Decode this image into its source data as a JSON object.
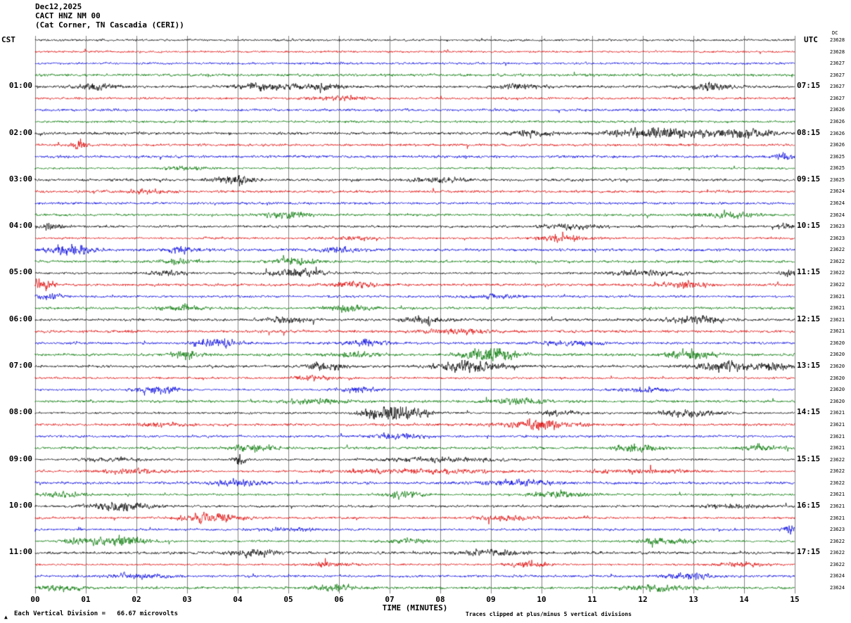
{
  "header": {
    "date": "Dec12,2025",
    "station": "CACT HNZ NM 00",
    "location": "(Cat Corner, TN Cascadia (CERI))"
  },
  "axes": {
    "left_header": "CST",
    "right_header": "UTC",
    "dc_header": "DC",
    "x_axis_title": "TIME (MINUTES)",
    "x_ticks": [
      "00",
      "01",
      "02",
      "03",
      "04",
      "05",
      "06",
      "07",
      "08",
      "09",
      "10",
      "11",
      "12",
      "13",
      "14",
      "15"
    ],
    "left_labels": [
      {
        "row": 4,
        "text": "01:00"
      },
      {
        "row": 8,
        "text": "02:00"
      },
      {
        "row": 12,
        "text": "03:00"
      },
      {
        "row": 16,
        "text": "04:00"
      },
      {
        "row": 20,
        "text": "05:00"
      },
      {
        "row": 24,
        "text": "06:00"
      },
      {
        "row": 28,
        "text": "07:00"
      },
      {
        "row": 32,
        "text": "08:00"
      },
      {
        "row": 36,
        "text": "09:00"
      },
      {
        "row": 40,
        "text": "10:00"
      },
      {
        "row": 44,
        "text": "11:00"
      }
    ],
    "right_labels": [
      {
        "row": 4,
        "text": "07:15"
      },
      {
        "row": 8,
        "text": "08:15"
      },
      {
        "row": 12,
        "text": "09:15"
      },
      {
        "row": 16,
        "text": "10:15"
      },
      {
        "row": 20,
        "text": "11:15"
      },
      {
        "row": 24,
        "text": "12:15"
      },
      {
        "row": 28,
        "text": "13:15"
      },
      {
        "row": 32,
        "text": "14:15"
      },
      {
        "row": 36,
        "text": "15:15"
      },
      {
        "row": 40,
        "text": "16:15"
      },
      {
        "row": 44,
        "text": "17:15"
      }
    ],
    "dc_values": [
      "23628",
      "23628",
      "23627",
      "23627",
      "23627",
      "23627",
      "23626",
      "23626",
      "23626",
      "23626",
      "23625",
      "23625",
      "23625",
      "23624",
      "23624",
      "23624",
      "23623",
      "23623",
      "23622",
      "23622",
      "23622",
      "23622",
      "23621",
      "23621",
      "23621",
      "23621",
      "23620",
      "23620",
      "23620",
      "23620",
      "23620",
      "23620",
      "23621",
      "23621",
      "23621",
      "23621",
      "23622",
      "23622",
      "23622",
      "23621",
      "23621",
      "23621",
      "23623",
      "23622",
      "23622",
      "23622",
      "23624",
      "23624"
    ]
  },
  "footer": {
    "scale_note": "Each Vertical Division =   66.67 microvolts",
    "clip_note": "Traces clipped at plus/minus 5 vertical divisions",
    "corner_mark": "▲"
  },
  "style": {
    "trace_black": "#000000",
    "trace_red": "#dd0000",
    "trace_blue": "#0000dd",
    "trace_green": "#007700",
    "grid_color": "#808080",
    "background": "#ffffff"
  },
  "chart_data": {
    "type": "line",
    "subtype": "helicorder_seismogram",
    "title": "CACT HNZ NM 00 — Dec12,2025 — (Cat Corner, TN Cascadia (CERI))",
    "xlabel": "TIME (MINUTES)",
    "x_range_minutes": [
      0,
      15
    ],
    "x_tick_labels": [
      "00",
      "01",
      "02",
      "03",
      "04",
      "05",
      "06",
      "07",
      "08",
      "09",
      "10",
      "11",
      "12",
      "13",
      "14",
      "15"
    ],
    "rows": 48,
    "minutes_per_row": 15,
    "first_row_start_cst": "00:00",
    "last_row_start_cst": "11:45",
    "left_axis_timezone": "CST",
    "right_axis_timezone": "UTC",
    "colors": [
      "#000000",
      "#dd0000",
      "#0000dd",
      "#007700"
    ],
    "clip_limit_divisions": 5,
    "microvolts_per_division": 66.67,
    "events_format": [
      "row_index",
      "minute_center",
      "relative_amplitude",
      "sigma_minutes"
    ],
    "events": [
      [
        4,
        1.2,
        2.5,
        0.25
      ],
      [
        4,
        4.6,
        2.5,
        0.45
      ],
      [
        4,
        5.7,
        2,
        0.3
      ],
      [
        4,
        9.6,
        1.8,
        0.3
      ],
      [
        4,
        13.3,
        2,
        0.35
      ],
      [
        5,
        6.0,
        1.5,
        0.4
      ],
      [
        8,
        9.8,
        2,
        0.3
      ],
      [
        8,
        12.4,
        3.5,
        0.7
      ],
      [
        8,
        14.0,
        3,
        0.4
      ],
      [
        9,
        0.9,
        4.5,
        0.1
      ],
      [
        10,
        14.8,
        3,
        0.12
      ],
      [
        11,
        3.0,
        1.5,
        0.3
      ],
      [
        12,
        3.9,
        3.5,
        0.25
      ],
      [
        12,
        8.0,
        1.5,
        0.4
      ],
      [
        13,
        2.2,
        1.5,
        0.3
      ],
      [
        15,
        5.0,
        2.5,
        0.3
      ],
      [
        15,
        13.7,
        2.5,
        0.35
      ],
      [
        16,
        0.3,
        2,
        0.2
      ],
      [
        16,
        10.6,
        2,
        0.35
      ],
      [
        16,
        14.8,
        3.5,
        0.1
      ],
      [
        17,
        6.3,
        1.8,
        0.3
      ],
      [
        17,
        10.4,
        3,
        0.35
      ],
      [
        18,
        0.7,
        3.5,
        0.3
      ],
      [
        18,
        2.9,
        2,
        0.25
      ],
      [
        18,
        6.0,
        1.5,
        0.3
      ],
      [
        19,
        2.9,
        1.8,
        0.25
      ],
      [
        19,
        5.2,
        2.5,
        0.3
      ],
      [
        20,
        2.6,
        2,
        0.3
      ],
      [
        20,
        5.2,
        3,
        0.4
      ],
      [
        20,
        12.1,
        2.5,
        0.5
      ],
      [
        20,
        14.9,
        3.5,
        0.1
      ],
      [
        21,
        0.15,
        4,
        0.15
      ],
      [
        21,
        6.3,
        2,
        0.3
      ],
      [
        21,
        12.8,
        2.5,
        0.3
      ],
      [
        22,
        0.3,
        3,
        0.2
      ],
      [
        22,
        9.0,
        1.5,
        0.4
      ],
      [
        23,
        2.9,
        2,
        0.3
      ],
      [
        23,
        6.2,
        2.5,
        0.3
      ],
      [
        24,
        5.0,
        1.8,
        0.3
      ],
      [
        24,
        7.7,
        2.5,
        0.3
      ],
      [
        24,
        13.1,
        2.5,
        0.4
      ],
      [
        25,
        8.3,
        1.8,
        0.4
      ],
      [
        26,
        3.6,
        3.5,
        0.3
      ],
      [
        26,
        6.5,
        2.5,
        0.3
      ],
      [
        26,
        10.5,
        2,
        0.4
      ],
      [
        27,
        3.0,
        2.5,
        0.25
      ],
      [
        27,
        6.3,
        2,
        0.3
      ],
      [
        27,
        9.0,
        6,
        0.35
      ],
      [
        27,
        12.9,
        4,
        0.3
      ],
      [
        28,
        5.7,
        3,
        0.25
      ],
      [
        28,
        8.6,
        4.5,
        0.4
      ],
      [
        28,
        13.6,
        3.5,
        0.4
      ],
      [
        28,
        14.6,
        3,
        0.2
      ],
      [
        29,
        5.5,
        2,
        0.3
      ],
      [
        30,
        2.4,
        3.5,
        0.3
      ],
      [
        30,
        6.4,
        2.5,
        0.3
      ],
      [
        30,
        12.0,
        2,
        0.4
      ],
      [
        31,
        5.5,
        2,
        0.4
      ],
      [
        31,
        9.5,
        2,
        0.4
      ],
      [
        32,
        6.9,
        7,
        0.3
      ],
      [
        32,
        7.4,
        5,
        0.3
      ],
      [
        32,
        10.3,
        2,
        0.3
      ],
      [
        32,
        12.9,
        3.5,
        0.4
      ],
      [
        33,
        2.5,
        1.8,
        0.3
      ],
      [
        33,
        9.9,
        3.5,
        0.5
      ],
      [
        34,
        7.2,
        2,
        0.4
      ],
      [
        35,
        4.3,
        2.5,
        0.3
      ],
      [
        35,
        11.9,
        3,
        0.3
      ],
      [
        35,
        14.3,
        2,
        0.3
      ],
      [
        36,
        1.5,
        1.8,
        0.4
      ],
      [
        36,
        4.05,
        5,
        0.1
      ],
      [
        36,
        8.0,
        2,
        0.8
      ],
      [
        37,
        2.0,
        2,
        0.6
      ],
      [
        37,
        7.5,
        2,
        1.2
      ],
      [
        37,
        12.0,
        2,
        0.8
      ],
      [
        38,
        4.0,
        3,
        0.3
      ],
      [
        38,
        9.5,
        2,
        0.5
      ],
      [
        39,
        0.5,
        2,
        0.3
      ],
      [
        39,
        7.3,
        2.5,
        0.3
      ],
      [
        39,
        10.3,
        2.5,
        0.4
      ],
      [
        40,
        1.7,
        3.5,
        0.4
      ],
      [
        40,
        13.8,
        2,
        0.4
      ],
      [
        41,
        3.5,
        4,
        0.4
      ],
      [
        41,
        9.3,
        2,
        0.4
      ],
      [
        42,
        5.0,
        1.5,
        0.4
      ],
      [
        42,
        14.9,
        3.5,
        0.1
      ],
      [
        43,
        1.0,
        4,
        0.3
      ],
      [
        43,
        1.8,
        4.5,
        0.3
      ],
      [
        43,
        7.3,
        2.5,
        0.3
      ],
      [
        43,
        12.5,
        3,
        0.4
      ],
      [
        44,
        4.3,
        3,
        0.3
      ],
      [
        44,
        9.0,
        2,
        0.4
      ],
      [
        45,
        5.8,
        2.5,
        0.3
      ],
      [
        45,
        9.7,
        2.5,
        0.3
      ],
      [
        45,
        13.9,
        2.5,
        0.3
      ],
      [
        46,
        2.0,
        1.8,
        0.4
      ],
      [
        46,
        12.9,
        3,
        0.3
      ],
      [
        47,
        0.5,
        2,
        0.3
      ],
      [
        47,
        5.9,
        2.5,
        0.3
      ],
      [
        47,
        12.3,
        2.5,
        0.4
      ]
    ]
  }
}
